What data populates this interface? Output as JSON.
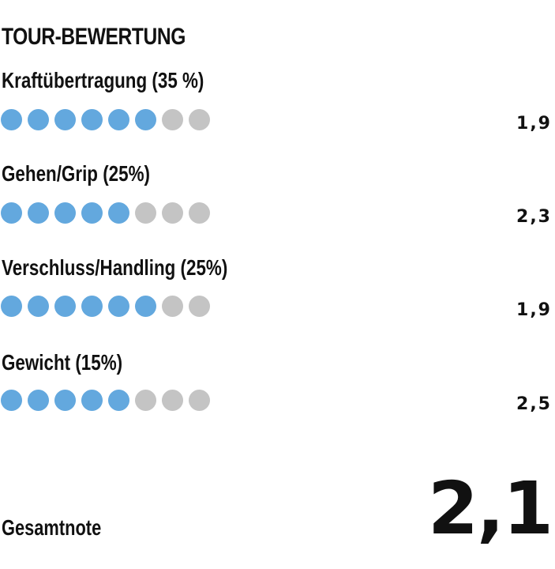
{
  "title": "TOUR-BEWERTUNG",
  "categories": [
    {
      "label": "Kraftübertragung (35 %)",
      "value": "1,9",
      "filled": 6,
      "total": 8
    },
    {
      "label": "Gehen/Grip (25%)",
      "value": "2,3",
      "filled": 5,
      "total": 8
    },
    {
      "label": "Verschluss/Handling (25%)",
      "value": "1,9",
      "filled": 6,
      "total": 8
    },
    {
      "label": "Gewicht (15%)",
      "value": "2,5",
      "filled": 5,
      "total": 8
    }
  ],
  "total": {
    "label": "Gesamtnote",
    "value": "2,1"
  },
  "colors": {
    "filled": "#63a8de",
    "empty": "#c4c4c4"
  },
  "chart_data": {
    "type": "table",
    "title": "TOUR-BEWERTUNG",
    "categories": [
      "Kraftübertragung (35 %)",
      "Gehen/Grip (25%)",
      "Verschluss/Handling (25%)",
      "Gewicht (15%)"
    ],
    "weights_percent": [
      35,
      25,
      25,
      15
    ],
    "grades": [
      1.9,
      2.3,
      1.9,
      2.5
    ],
    "dots_filled": [
      6,
      5,
      6,
      5
    ],
    "dots_total": 8,
    "overall_label": "Gesamtnote",
    "overall_grade": 2.1
  }
}
